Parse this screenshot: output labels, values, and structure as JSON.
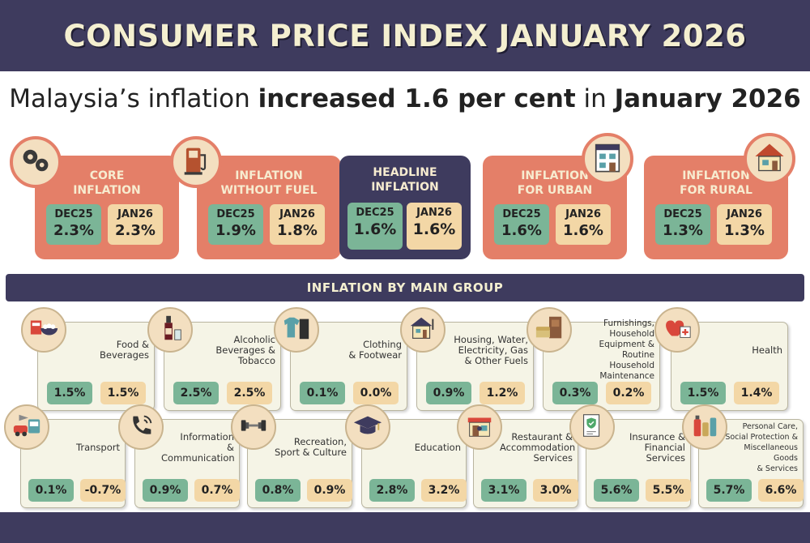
{
  "header": {
    "title": "CONSUMER PRICE INDEX JANUARY 2026"
  },
  "subtitle": {
    "part1": "Malaysia’s inflation ",
    "part2": "increased 1.6 per cent",
    "part3": " in ",
    "part4": "January 2026"
  },
  "colors": {
    "navy": "#3e3b5e",
    "coral": "#e47f68",
    "teal": "#7bb597",
    "peach": "#f3d7a6",
    "cream": "#f5f4e6"
  },
  "chart_data": {
    "type": "table",
    "title": "CONSUMER PRICE INDEX JANUARY 2026",
    "periods": [
      "DEC25",
      "JAN26"
    ],
    "headline_cards": [
      {
        "title_lines": [
          "CORE",
          "INFLATION"
        ],
        "icon": "gears-icon",
        "dec25": "2.3%",
        "jan26": "2.3%"
      },
      {
        "title_lines": [
          "INFLATION",
          "WITHOUT FUEL"
        ],
        "icon": "fuel-pump-icon",
        "dec25": "1.9%",
        "jan26": "1.8%"
      },
      {
        "title_lines": [
          "HEADLINE",
          "INFLATION"
        ],
        "icon": "",
        "dec25": "1.6%",
        "jan26": "1.6%"
      },
      {
        "title_lines": [
          "INFLATION",
          "FOR URBAN"
        ],
        "icon": "building-icon",
        "dec25": "1.6%",
        "jan26": "1.6%"
      },
      {
        "title_lines": [
          "INFLATION",
          "FOR RURAL"
        ],
        "icon": "house-icon",
        "dec25": "1.3%",
        "jan26": "1.3%"
      }
    ],
    "section_title": "INFLATION BY MAIN GROUP",
    "groups": [
      {
        "label_lines": [
          "Food &",
          "Beverages"
        ],
        "icon": "food-bowl-icon",
        "dec25": "1.5%",
        "jan26": "1.5%"
      },
      {
        "label_lines": [
          "Alcoholic",
          "Beverages &",
          "Tobacco"
        ],
        "icon": "wine-bottle-icon",
        "dec25": "2.5%",
        "jan26": "2.5%"
      },
      {
        "label_lines": [
          "Clothing",
          "& Footwear"
        ],
        "icon": "clothing-icon",
        "dec25": "0.1%",
        "jan26": "0.0%"
      },
      {
        "label_lines": [
          "Housing, Water,",
          "Electricity, Gas",
          "& Other Fuels"
        ],
        "icon": "house-utilities-icon",
        "dec25": "0.9%",
        "jan26": "1.2%"
      },
      {
        "label_lines": [
          "Furnishings,",
          "Household",
          "Equipment & Routine",
          "Household Maintenance"
        ],
        "icon": "furniture-icon",
        "dec25": "0.3%",
        "jan26": "0.2%"
      },
      {
        "label_lines": [
          "Health"
        ],
        "icon": "heart-medical-icon",
        "dec25": "1.5%",
        "jan26": "1.4%"
      },
      {
        "label_lines": [
          "Transport"
        ],
        "icon": "vehicles-icon",
        "dec25": "0.1%",
        "jan26": "-0.7%"
      },
      {
        "label_lines": [
          "Information",
          "& Communication"
        ],
        "icon": "phone-icon",
        "dec25": "0.9%",
        "jan26": "0.7%"
      },
      {
        "label_lines": [
          "Recreation,",
          "Sport & Culture"
        ],
        "icon": "dumbbell-icon",
        "dec25": "0.8%",
        "jan26": "0.9%"
      },
      {
        "label_lines": [
          "Education"
        ],
        "icon": "graduation-cap-icon",
        "dec25": "2.8%",
        "jan26": "3.2%"
      },
      {
        "label_lines": [
          "Restaurant &",
          "Accommodation",
          "Services"
        ],
        "icon": "restaurant-icon",
        "dec25": "3.1%",
        "jan26": "3.0%"
      },
      {
        "label_lines": [
          "Insurance &",
          "Financial",
          "Services"
        ],
        "icon": "insurance-document-icon",
        "dec25": "5.6%",
        "jan26": "5.5%"
      },
      {
        "label_lines": [
          "Personal Care,",
          "Social Protection &",
          "Miscellaneous Goods",
          "& Services"
        ],
        "icon": "personal-care-icon",
        "dec25": "5.7%",
        "jan26": "6.6%"
      }
    ]
  }
}
